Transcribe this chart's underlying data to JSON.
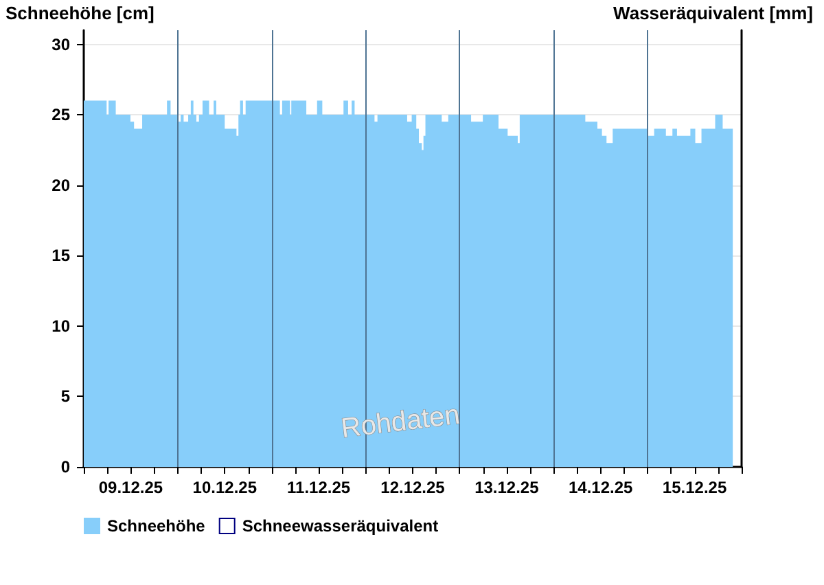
{
  "chart_data": {
    "type": "area",
    "ylabel": "Schneehöhe [cm]",
    "y2label": "Wasseräquivalent [mm]",
    "annotations": [
      "Rohdaten"
    ],
    "x": [
      "--12-09T00:00",
      "--12-09T05:50",
      "--12-09T06:20",
      "--12-09T08:10",
      "--12-09T11:55",
      "--12-09T12:50",
      "--12-09T14:55",
      "--12-09T21:15",
      "--12-09T22:10",
      "--12-09T23:50",
      "--12-10T00:45",
      "--12-10T01:30",
      "--12-10T02:40",
      "--12-10T03:20",
      "--12-10T04:00",
      "--12-10T04:45",
      "--12-10T05:25",
      "--12-10T06:20",
      "--12-10T08:00",
      "--12-10T09:10",
      "--12-10T09:50",
      "--12-10T12:00",
      "--12-10T15:00",
      "--12-10T15:30",
      "--12-10T15:55",
      "--12-10T16:40",
      "--12-10T17:20",
      "--12-11T02:05",
      "--12-11T02:40",
      "--12-11T04:40",
      "--12-11T05:00",
      "--12-11T08:50",
      "--12-11T11:35",
      "--12-11T12:55",
      "--12-11T18:20",
      "--12-11T19:30",
      "--12-11T20:25",
      "--12-11T21:10",
      "--12-12T02:15",
      "--12-12T03:00",
      "--12-12T10:35",
      "--12-12T11:45",
      "--12-12T12:55",
      "--12-12T13:35",
      "--12-12T14:20",
      "--12-12T14:45",
      "--12-12T15:15",
      "--12-12T19:25",
      "--12-12T21:05",
      "--12-13T02:55",
      "--12-13T05:55",
      "--12-13T09:55",
      "--12-13T12:15",
      "--12-13T14:50",
      "--12-13T15:20",
      "--12-14T08:05",
      "--12-14T11:10",
      "--12-14T12:20",
      "--12-14T13:30",
      "--12-14T15:05",
      "--12-15T00:00",
      "--12-15T01:40",
      "--12-15T04:40",
      "--12-15T06:20",
      "--12-15T07:30",
      "--12-15T10:55",
      "--12-15T12:10",
      "--12-15T13:45",
      "--12-15T17:15",
      "--12-15T19:10",
      "--12-15T21:45"
    ],
    "series": [
      {
        "name": "Schneehöhe",
        "color": "#87cefa",
        "values": [
          26,
          25,
          26,
          25,
          24.5,
          24,
          25,
          26,
          25,
          24.5,
          25,
          24.5,
          25,
          26,
          25,
          24.5,
          25,
          26,
          25,
          26,
          25,
          24,
          23.5,
          25,
          26,
          25,
          26,
          25,
          26,
          25,
          26,
          25,
          26,
          25,
          26,
          25,
          26,
          25,
          24.5,
          25,
          24.5,
          25,
          24,
          23,
          22.5,
          23.5,
          25,
          24.5,
          25,
          24.5,
          25,
          24,
          23.5,
          23,
          25,
          24.5,
          24,
          23.5,
          23,
          24,
          23.5,
          24,
          23.5,
          24,
          23.5,
          24,
          23,
          24,
          25,
          24,
          24
        ]
      },
      {
        "name": "Schneewasseräquivalent",
        "color": "#000080",
        "values": [
          null,
          null,
          null,
          null,
          null,
          null,
          null,
          null,
          null,
          null,
          null,
          null,
          null,
          null,
          null,
          null,
          null,
          null,
          null,
          null,
          null,
          null,
          null,
          null,
          null,
          null,
          null,
          null,
          null,
          null,
          null,
          null,
          null,
          null,
          null,
          null,
          null,
          null,
          null,
          null,
          null,
          null,
          null,
          null,
          null,
          null,
          null,
          null,
          null,
          null,
          null,
          null,
          null,
          null,
          null,
          null,
          null,
          null,
          null,
          null,
          null,
          null,
          null,
          null,
          null,
          null,
          null,
          null,
          null,
          null,
          null
        ]
      }
    ],
    "xlim": [
      "--12-09T00:00",
      "--12-16T00:00"
    ],
    "xticks": [
      {
        "value": "--12-09T00:00",
        "label": null
      },
      {
        "value": "--12-09T06:00",
        "label": null
      },
      {
        "value": "--12-09T12:00",
        "label": "09.12.25"
      },
      {
        "value": "--12-09T18:00",
        "label": null
      },
      {
        "value": "--12-10T00:00",
        "label": null
      },
      {
        "value": "--12-10T06:00",
        "label": null
      },
      {
        "value": "--12-10T12:00",
        "label": "10.12.25"
      },
      {
        "value": "--12-10T18:00",
        "label": null
      },
      {
        "value": "--12-11T00:00",
        "label": null
      },
      {
        "value": "--12-11T06:00",
        "label": null
      },
      {
        "value": "--12-11T12:00",
        "label": "11.12.25"
      },
      {
        "value": "--12-11T18:00",
        "label": null
      },
      {
        "value": "--12-12T00:00",
        "label": null
      },
      {
        "value": "--12-12T06:00",
        "label": null
      },
      {
        "value": "--12-12T12:00",
        "label": "12.12.25"
      },
      {
        "value": "--12-12T18:00",
        "label": null
      },
      {
        "value": "--12-13T00:00",
        "label": null
      },
      {
        "value": "--12-13T06:00",
        "label": null
      },
      {
        "value": "--12-13T12:00",
        "label": "13.12.25"
      },
      {
        "value": "--12-13T18:00",
        "label": null
      },
      {
        "value": "--12-14T00:00",
        "label": null
      },
      {
        "value": "--12-14T06:00",
        "label": null
      },
      {
        "value": "--12-14T12:00",
        "label": "14.12.25"
      },
      {
        "value": "--12-14T18:00",
        "label": null
      },
      {
        "value": "--12-15T00:00",
        "label": null
      },
      {
        "value": "--12-15T06:00",
        "label": null
      },
      {
        "value": "--12-15T12:00",
        "label": "15.12.25"
      },
      {
        "value": "--12-15T18:00",
        "label": null
      },
      {
        "value": "--12-16T00:00",
        "label": null
      }
    ],
    "ylim": [
      0,
      31
    ],
    "yticks": [
      0,
      5,
      10,
      15,
      20,
      25,
      30
    ],
    "ref_lines": [
      {
        "axis": "x",
        "value": "--12-10T00:00",
        "color": "#4f7493"
      },
      {
        "axis": "x",
        "value": "--12-11T00:00",
        "color": "#4f7493"
      },
      {
        "axis": "x",
        "value": "--12-12T00:00",
        "color": "#4f7493"
      },
      {
        "axis": "x",
        "value": "--12-13T00:00",
        "color": "#4f7493"
      },
      {
        "axis": "x",
        "value": "--12-14T00:00",
        "color": "#4f7493"
      },
      {
        "axis": "x",
        "value": "--12-15T00:00",
        "color": "#4f7493"
      }
    ],
    "grid": "y",
    "legend": "bottom left"
  }
}
